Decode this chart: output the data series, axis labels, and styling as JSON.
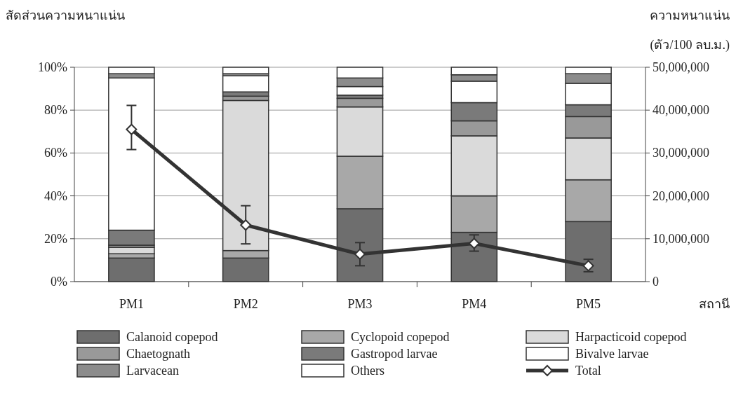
{
  "chart_data": {
    "type": "bar",
    "stacked": true,
    "ylabel": "สัดส่วนความหนาแน่น",
    "y2label": "ความหนาแน่น\n(ตัว/100 ลบ.ม.)",
    "xlabel": "สถานี",
    "categories": [
      "PM1",
      "PM2",
      "PM3",
      "PM4",
      "PM5"
    ],
    "series": [
      {
        "name": "Calanoid copepod",
        "color": "#6e6e6e",
        "values": [
          11,
          11,
          34,
          23,
          28
        ]
      },
      {
        "name": "Cyclopoid copepod",
        "color": "#a8a8a8",
        "values": [
          2,
          3.5,
          24.5,
          17,
          19.5
        ]
      },
      {
        "name": "Harpacticoid copepod",
        "color": "#dadada",
        "values": [
          3,
          70,
          23,
          28,
          19.5
        ]
      },
      {
        "name": "Chaetognath",
        "color": "#999999",
        "values": [
          1,
          2,
          4,
          7,
          10
        ]
      },
      {
        "name": "Gastropod larvae",
        "color": "#7a7a7a",
        "values": [
          7,
          2,
          1.5,
          8.5,
          5.5
        ]
      },
      {
        "name": "Bivalve larvae",
        "color": "#ffffff",
        "values": [
          71,
          7.5,
          4,
          10,
          10
        ]
      },
      {
        "name": "Larvacean",
        "color": "#8c8c8c",
        "values": [
          2,
          1,
          4,
          3,
          4.5
        ]
      },
      {
        "name": "Others",
        "color": "#ffffff",
        "values": [
          3,
          3,
          5,
          3.5,
          3
        ]
      },
      {
        "name": "Total",
        "type": "line",
        "axis": "y2",
        "color": "#333333",
        "marker": "diamond",
        "values": [
          35500000,
          13200000,
          6400000,
          8900000,
          3700000
        ],
        "errors": [
          [
            30800000,
            41100000
          ],
          [
            8800000,
            17700000
          ],
          [
            3700000,
            9100000
          ],
          [
            7100000,
            10900000
          ],
          [
            2300000,
            5200000
          ]
        ]
      }
    ],
    "ylim": [
      0,
      100
    ],
    "yticks": [
      {
        "value": 0,
        "label": "0%"
      },
      {
        "value": 20,
        "label": "20%"
      },
      {
        "value": 40,
        "label": "40%"
      },
      {
        "value": 60,
        "label": "60%"
      },
      {
        "value": 80,
        "label": "80%"
      },
      {
        "value": 100,
        "label": "100%"
      }
    ],
    "y2lim": [
      0,
      50000000
    ],
    "y2ticks": [
      0,
      {
        "value": 10000000,
        "label": "10,000,000"
      },
      {
        "value": 20000000,
        "label": "20,000,000"
      },
      {
        "value": 30000000,
        "label": "30,000,000"
      },
      {
        "value": 40000000,
        "label": "40,000,000"
      },
      {
        "value": 50000000,
        "label": "50,000,000"
      }
    ],
    "grid": "y",
    "legend": "bottom"
  }
}
